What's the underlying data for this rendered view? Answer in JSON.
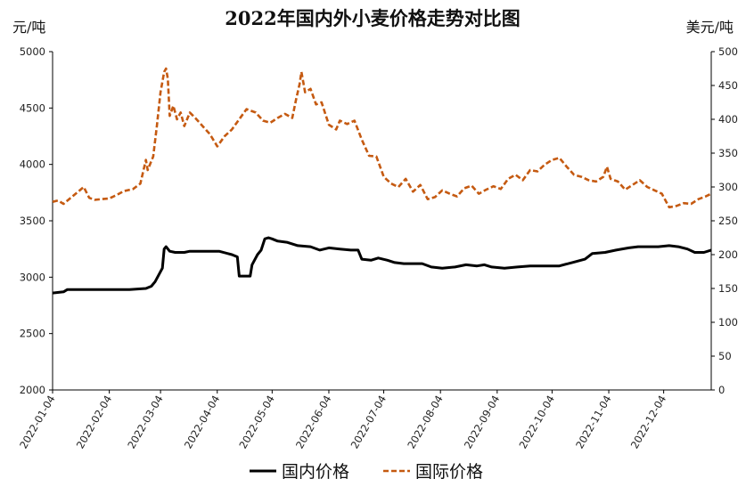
{
  "chart_data": {
    "type": "line",
    "title": "2022年国内外小麦价格走势对比图",
    "y_left_label": "元/吨",
    "y_right_label": "美元/吨",
    "y_left_lim": [
      2000,
      5000
    ],
    "y_right_lim": [
      0,
      500
    ],
    "y_left_ticks": [
      "2000",
      "2500",
      "3000",
      "3500",
      "4000",
      "4500",
      "5000"
    ],
    "y_right_ticks": [
      "0",
      "50",
      "100",
      "150",
      "200",
      "250",
      "300",
      "350",
      "400",
      "450",
      "500"
    ],
    "x_lim": [
      "2022-01-04",
      "2022-12-30"
    ],
    "x_ticks": [
      "2022-01-04",
      "2022-02-04",
      "2022-03-04",
      "2022-04-04",
      "2022-05-04",
      "2022-06-04",
      "2022-07-04",
      "2022-08-04",
      "2022-09-04",
      "2022-10-04",
      "2022-11-04",
      "2022-12-04"
    ],
    "grid": false,
    "legend_position": "bottom",
    "series": [
      {
        "name": "国内价格",
        "axis": "left",
        "color": "#000000",
        "style": "solid",
        "points": [
          [
            "2022-01-04",
            2860
          ],
          [
            "2022-01-10",
            2870
          ],
          [
            "2022-01-12",
            2890
          ],
          [
            "2022-01-20",
            2890
          ],
          [
            "2022-02-01",
            2890
          ],
          [
            "2022-02-15",
            2890
          ],
          [
            "2022-02-24",
            2900
          ],
          [
            "2022-02-27",
            2920
          ],
          [
            "2022-03-01",
            2960
          ],
          [
            "2022-03-03",
            3020
          ],
          [
            "2022-03-05",
            3080
          ],
          [
            "2022-03-06",
            3250
          ],
          [
            "2022-03-07",
            3270
          ],
          [
            "2022-03-09",
            3230
          ],
          [
            "2022-03-12",
            3220
          ],
          [
            "2022-03-17",
            3220
          ],
          [
            "2022-03-20",
            3230
          ],
          [
            "2022-03-28",
            3230
          ],
          [
            "2022-04-05",
            3230
          ],
          [
            "2022-04-12",
            3200
          ],
          [
            "2022-04-15",
            3180
          ],
          [
            "2022-04-16",
            3010
          ],
          [
            "2022-04-22",
            3010
          ],
          [
            "2022-04-23",
            3110
          ],
          [
            "2022-04-26",
            3200
          ],
          [
            "2022-04-28",
            3240
          ],
          [
            "2022-04-30",
            3340
          ],
          [
            "2022-05-02",
            3350
          ],
          [
            "2022-05-04",
            3340
          ],
          [
            "2022-05-07",
            3320
          ],
          [
            "2022-05-12",
            3310
          ],
          [
            "2022-05-18",
            3280
          ],
          [
            "2022-05-25",
            3270
          ],
          [
            "2022-05-30",
            3240
          ],
          [
            "2022-06-04",
            3260
          ],
          [
            "2022-06-10",
            3250
          ],
          [
            "2022-06-16",
            3240
          ],
          [
            "2022-06-20",
            3240
          ],
          [
            "2022-06-22",
            3160
          ],
          [
            "2022-06-27",
            3150
          ],
          [
            "2022-07-01",
            3170
          ],
          [
            "2022-07-06",
            3150
          ],
          [
            "2022-07-10",
            3130
          ],
          [
            "2022-07-15",
            3120
          ],
          [
            "2022-07-25",
            3120
          ],
          [
            "2022-07-30",
            3090
          ],
          [
            "2022-08-05",
            3080
          ],
          [
            "2022-08-12",
            3090
          ],
          [
            "2022-08-18",
            3110
          ],
          [
            "2022-08-24",
            3100
          ],
          [
            "2022-08-28",
            3110
          ],
          [
            "2022-09-01",
            3090
          ],
          [
            "2022-09-08",
            3080
          ],
          [
            "2022-09-15",
            3090
          ],
          [
            "2022-09-22",
            3100
          ],
          [
            "2022-10-01",
            3100
          ],
          [
            "2022-10-08",
            3100
          ],
          [
            "2022-10-15",
            3130
          ],
          [
            "2022-10-22",
            3160
          ],
          [
            "2022-10-26",
            3210
          ],
          [
            "2022-11-02",
            3220
          ],
          [
            "2022-11-08",
            3240
          ],
          [
            "2022-11-15",
            3260
          ],
          [
            "2022-11-20",
            3270
          ],
          [
            "2022-11-25",
            3270
          ],
          [
            "2022-12-01",
            3270
          ],
          [
            "2022-12-07",
            3280
          ],
          [
            "2022-12-12",
            3270
          ],
          [
            "2022-12-17",
            3250
          ],
          [
            "2022-12-21",
            3220
          ],
          [
            "2022-12-26",
            3220
          ],
          [
            "2022-12-30",
            3240
          ]
        ]
      },
      {
        "name": "国际价格",
        "axis": "right",
        "color": "#C55A11",
        "style": "dashed",
        "points": [
          [
            "2022-01-04",
            278
          ],
          [
            "2022-01-07",
            280
          ],
          [
            "2022-01-10",
            275
          ],
          [
            "2022-01-13",
            282
          ],
          [
            "2022-01-18",
            293
          ],
          [
            "2022-01-21",
            300
          ],
          [
            "2022-01-24",
            284
          ],
          [
            "2022-01-27",
            281
          ],
          [
            "2022-02-04",
            283
          ],
          [
            "2022-02-08",
            288
          ],
          [
            "2022-02-12",
            294
          ],
          [
            "2022-02-17",
            297
          ],
          [
            "2022-02-21",
            305
          ],
          [
            "2022-02-24",
            340
          ],
          [
            "2022-02-25",
            325
          ],
          [
            "2022-02-28",
            345
          ],
          [
            "2022-03-02",
            390
          ],
          [
            "2022-03-04",
            440
          ],
          [
            "2022-03-06",
            470
          ],
          [
            "2022-03-07",
            475
          ],
          [
            "2022-03-08",
            460
          ],
          [
            "2022-03-09",
            405
          ],
          [
            "2022-03-11",
            420
          ],
          [
            "2022-03-13",
            400
          ],
          [
            "2022-03-15",
            410
          ],
          [
            "2022-03-17",
            390
          ],
          [
            "2022-03-20",
            410
          ],
          [
            "2022-03-23",
            402
          ],
          [
            "2022-03-27",
            390
          ],
          [
            "2022-03-31",
            378
          ],
          [
            "2022-04-04",
            360
          ],
          [
            "2022-04-08",
            375
          ],
          [
            "2022-04-12",
            385
          ],
          [
            "2022-04-16",
            400
          ],
          [
            "2022-04-20",
            415
          ],
          [
            "2022-04-25",
            410
          ],
          [
            "2022-04-29",
            398
          ],
          [
            "2022-05-03",
            395
          ],
          [
            "2022-05-07",
            402
          ],
          [
            "2022-05-11",
            408
          ],
          [
            "2022-05-15",
            402
          ],
          [
            "2022-05-17",
            428
          ],
          [
            "2022-05-19",
            452
          ],
          [
            "2022-05-20",
            470
          ],
          [
            "2022-05-22",
            440
          ],
          [
            "2022-05-25",
            445
          ],
          [
            "2022-05-28",
            422
          ],
          [
            "2022-05-31",
            425
          ],
          [
            "2022-06-04",
            392
          ],
          [
            "2022-06-08",
            385
          ],
          [
            "2022-06-10",
            398
          ],
          [
            "2022-06-14",
            393
          ],
          [
            "2022-06-18",
            398
          ],
          [
            "2022-06-22",
            370
          ],
          [
            "2022-06-26",
            346
          ],
          [
            "2022-06-30",
            345
          ],
          [
            "2022-07-04",
            315
          ],
          [
            "2022-07-08",
            305
          ],
          [
            "2022-07-12",
            300
          ],
          [
            "2022-07-16",
            312
          ],
          [
            "2022-07-20",
            293
          ],
          [
            "2022-07-24",
            303
          ],
          [
            "2022-07-28",
            282
          ],
          [
            "2022-08-01",
            285
          ],
          [
            "2022-08-05",
            295
          ],
          [
            "2022-08-09",
            290
          ],
          [
            "2022-08-13",
            286
          ],
          [
            "2022-08-17",
            298
          ],
          [
            "2022-08-21",
            302
          ],
          [
            "2022-08-25",
            290
          ],
          [
            "2022-08-29",
            296
          ],
          [
            "2022-09-02",
            301
          ],
          [
            "2022-09-06",
            297
          ],
          [
            "2022-09-10",
            312
          ],
          [
            "2022-09-14",
            318
          ],
          [
            "2022-09-18",
            310
          ],
          [
            "2022-09-22",
            325
          ],
          [
            "2022-09-26",
            323
          ],
          [
            "2022-09-30",
            333
          ],
          [
            "2022-10-04",
            340
          ],
          [
            "2022-10-08",
            343
          ],
          [
            "2022-10-12",
            330
          ],
          [
            "2022-10-16",
            318
          ],
          [
            "2022-10-20",
            315
          ],
          [
            "2022-10-24",
            310
          ],
          [
            "2022-10-28",
            308
          ],
          [
            "2022-11-01",
            315
          ],
          [
            "2022-11-03",
            330
          ],
          [
            "2022-11-05",
            312
          ],
          [
            "2022-11-09",
            308
          ],
          [
            "2022-11-13",
            296
          ],
          [
            "2022-11-17",
            303
          ],
          [
            "2022-11-21",
            310
          ],
          [
            "2022-11-25",
            300
          ],
          [
            "2022-11-29",
            295
          ],
          [
            "2022-12-03",
            290
          ],
          [
            "2022-12-07",
            270
          ],
          [
            "2022-12-11",
            272
          ],
          [
            "2022-12-15",
            276
          ],
          [
            "2022-12-19",
            275
          ],
          [
            "2022-12-23",
            282
          ],
          [
            "2022-12-27",
            286
          ],
          [
            "2022-12-30",
            290
          ]
        ]
      }
    ]
  }
}
